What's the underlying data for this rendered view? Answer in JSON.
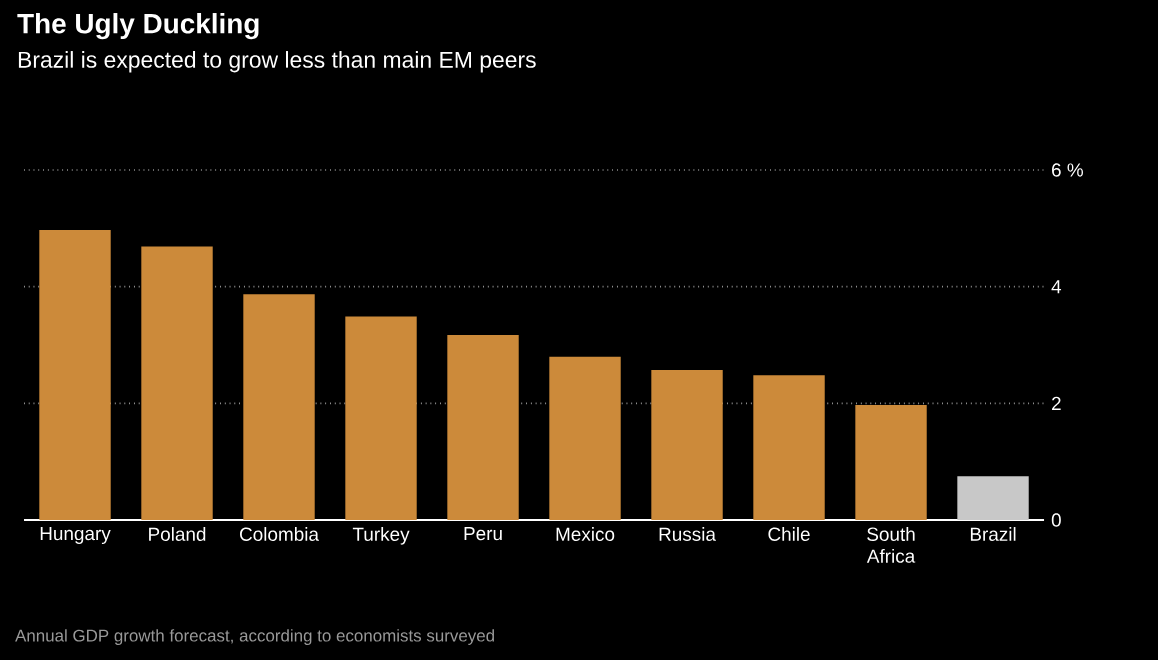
{
  "chart_data": {
    "type": "bar",
    "title": "The Ugly Duckling",
    "subtitle": "Brazil is expected to grow less than main EM peers",
    "categories": [
      "Hungary",
      "Poland",
      "Colombia",
      "Turkey",
      "Peru",
      "Mexico",
      "Russia",
      "Chile",
      "South Africa",
      "Brazil"
    ],
    "values": [
      4.97,
      4.69,
      3.87,
      3.49,
      3.17,
      2.8,
      2.57,
      2.48,
      1.97,
      0.75
    ],
    "colors": [
      "#cc8a3a",
      "#cc8a3a",
      "#cc8a3a",
      "#cc8a3a",
      "#cc8a3a",
      "#cc8a3a",
      "#cc8a3a",
      "#cc8a3a",
      "#cc8a3a",
      "#c8c8c8"
    ],
    "ylim": [
      0,
      6
    ],
    "yticks": [
      0,
      2,
      4,
      {
        "value": 6,
        "label": "6 %"
      }
    ],
    "grid": "y",
    "annotations": [
      "Annual GDP growth forecast, according to economists surveyed"
    ]
  }
}
